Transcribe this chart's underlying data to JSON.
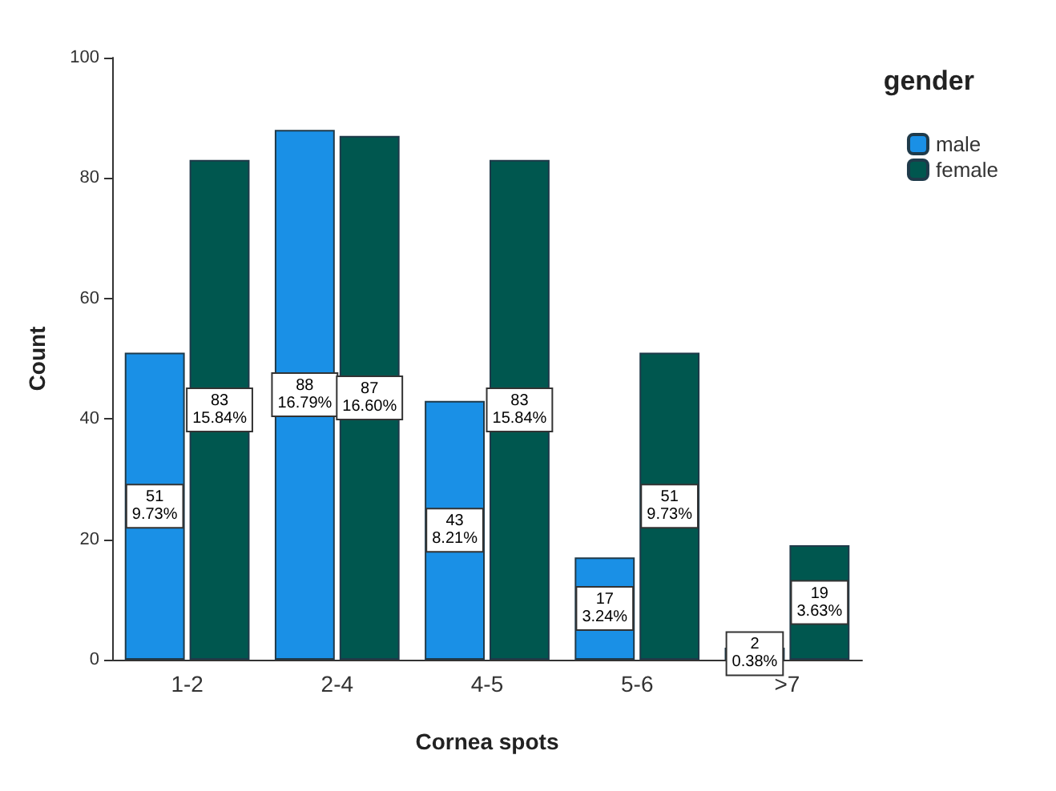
{
  "chart_data": {
    "type": "bar",
    "xlabel": "Cornea spots",
    "ylabel": "Count",
    "legend_title": "gender",
    "categories": [
      "1-2",
      "2-4",
      "4-5",
      "5-6",
      ">7"
    ],
    "series": [
      {
        "name": "male",
        "color": "#1a90e6",
        "values": [
          51,
          88,
          43,
          17,
          2
        ],
        "value_labels": [
          "51\n9.73%",
          "88\n16.79%",
          "43\n8.21%",
          "17\n3.24%",
          "2\n0.38%"
        ]
      },
      {
        "name": "female",
        "color": "#00574f",
        "values": [
          83,
          87,
          83,
          51,
          19
        ],
        "value_labels": [
          "83\n15.84%",
          "87\n16.60%",
          "83\n15.84%",
          "51\n9.73%",
          "19\n3.63%"
        ]
      }
    ],
    "ylim": [
      0,
      100
    ],
    "yticks": [
      0,
      20,
      40,
      60,
      80,
      100
    ],
    "grid": false,
    "legend": "top right"
  }
}
